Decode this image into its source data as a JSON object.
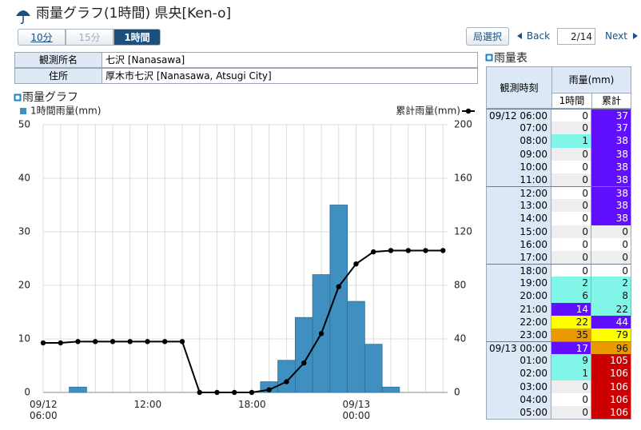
{
  "header": {
    "title": "雨量グラフ(1時間) 県央[Ken-o]"
  },
  "tabs": [
    "10分",
    "15分",
    "1時間"
  ],
  "buttons": {
    "station_select": "局選択",
    "back": "Back",
    "page": "2/14",
    "next": "Next"
  },
  "station_info": {
    "rows": [
      [
        "観測所名",
        "七沢 [Nanasawa]"
      ],
      [
        "住所",
        "厚木市七沢 [Nanasawa, Atsugi City]"
      ]
    ]
  },
  "chart_data": {
    "type": "combo",
    "title": "雨量グラフ",
    "categories": [
      "09/12\n06:00",
      null,
      null,
      null,
      null,
      null,
      "12:00",
      null,
      null,
      null,
      null,
      null,
      "18:00",
      null,
      null,
      null,
      null,
      null,
      "09/13\n00:00",
      null,
      null,
      null,
      null,
      null
    ],
    "series": [
      {
        "name": "1時間雨量(mm)",
        "type": "bar",
        "color": "#3f8fc0",
        "values": [
          0,
          0,
          1,
          0,
          0,
          0,
          0,
          0,
          0,
          0,
          0,
          0,
          0,
          2,
          6,
          14,
          22,
          35,
          17,
          9,
          1,
          0,
          0,
          0
        ]
      },
      {
        "name": "累計雨量(mm)",
        "type": "line",
        "color": "#000000",
        "axis": "y2",
        "values": [
          37,
          37,
          38,
          38,
          38,
          38,
          38,
          38,
          38,
          0,
          0,
          0,
          0,
          2,
          8,
          22,
          44,
          79,
          96,
          105,
          106,
          106,
          106,
          106
        ]
      }
    ],
    "ylim": [
      0,
      50
    ],
    "yticks": [
      0,
      10,
      20,
      30,
      40,
      50
    ],
    "y2lim": [
      0,
      200
    ],
    "y2ticks": [
      0,
      40,
      80,
      120,
      160,
      200
    ],
    "grid": true
  },
  "rain_table": {
    "title": "雨量表",
    "header": {
      "time": "観測時刻",
      "rain": "雨量(mm)",
      "hourly": "1時間",
      "total": "累計"
    },
    "rows": [
      {
        "time": "09/12 06:00",
        "hourly": 0,
        "total": 37,
        "colors": [
          "#ffffff",
          "#6010ff"
        ]
      },
      {
        "time": "07:00",
        "hourly": 0,
        "total": 37,
        "colors": [
          "#eeeeee",
          "#6010ff"
        ]
      },
      {
        "time": "08:00",
        "hourly": 1,
        "total": 38,
        "colors": [
          "#80f5e8",
          "#6010ff"
        ]
      },
      {
        "time": "09:00",
        "hourly": 0,
        "total": 38,
        "colors": [
          "#eeeeee",
          "#6010ff"
        ]
      },
      {
        "time": "10:00",
        "hourly": 0,
        "total": 38,
        "colors": [
          "#ffffff",
          "#6010ff"
        ]
      },
      {
        "time": "11:00",
        "hourly": 0,
        "total": 38,
        "colors": [
          "#eeeeee",
          "#6010ff"
        ]
      },
      {
        "time": "12:00",
        "hourly": 0,
        "total": 38,
        "colors": [
          "#ffffff",
          "#6010ff"
        ]
      },
      {
        "time": "13:00",
        "hourly": 0,
        "total": 38,
        "colors": [
          "#eeeeee",
          "#6010ff"
        ]
      },
      {
        "time": "14:00",
        "hourly": 0,
        "total": 38,
        "colors": [
          "#ffffff",
          "#6010ff"
        ]
      },
      {
        "time": "15:00",
        "hourly": 0,
        "total": 0,
        "colors": [
          "#eeeeee",
          "#eeeeee"
        ]
      },
      {
        "time": "16:00",
        "hourly": 0,
        "total": 0,
        "colors": [
          "#ffffff",
          "#ffffff"
        ]
      },
      {
        "time": "17:00",
        "hourly": 0,
        "total": 0,
        "colors": [
          "#eeeeee",
          "#eeeeee"
        ]
      },
      {
        "time": "18:00",
        "hourly": 0,
        "total": 0,
        "colors": [
          "#ffffff",
          "#ffffff"
        ]
      },
      {
        "time": "19:00",
        "hourly": 2,
        "total": 2,
        "colors": [
          "#80f5e8",
          "#80f5e8"
        ]
      },
      {
        "time": "20:00",
        "hourly": 6,
        "total": 8,
        "colors": [
          "#80f5e8",
          "#80f5e8"
        ]
      },
      {
        "time": "21:00",
        "hourly": 14,
        "total": 22,
        "colors": [
          "#6010ff",
          "#80f5e8"
        ]
      },
      {
        "time": "22:00",
        "hourly": 22,
        "total": 44,
        "colors": [
          "#ffff00",
          "#6010ff"
        ]
      },
      {
        "time": "23:00",
        "hourly": 35,
        "total": 79,
        "colors": [
          "#e89a00",
          "#ffff00"
        ]
      },
      {
        "time": "09/13 00:00",
        "hourly": 17,
        "total": 96,
        "colors": [
          "#6010ff",
          "#e89a00"
        ]
      },
      {
        "time": "01:00",
        "hourly": 9,
        "total": 105,
        "colors": [
          "#80f5e8",
          "#cc0000"
        ]
      },
      {
        "time": "02:00",
        "hourly": 1,
        "total": 106,
        "colors": [
          "#80f5e8",
          "#cc0000"
        ]
      },
      {
        "time": "03:00",
        "hourly": 0,
        "total": 106,
        "colors": [
          "#eeeeee",
          "#cc0000"
        ]
      },
      {
        "time": "04:00",
        "hourly": 0,
        "total": 106,
        "colors": [
          "#ffffff",
          "#cc0000"
        ]
      },
      {
        "time": "05:00",
        "hourly": 0,
        "total": 106,
        "colors": [
          "#eeeeee",
          "#cc0000"
        ]
      }
    ]
  }
}
